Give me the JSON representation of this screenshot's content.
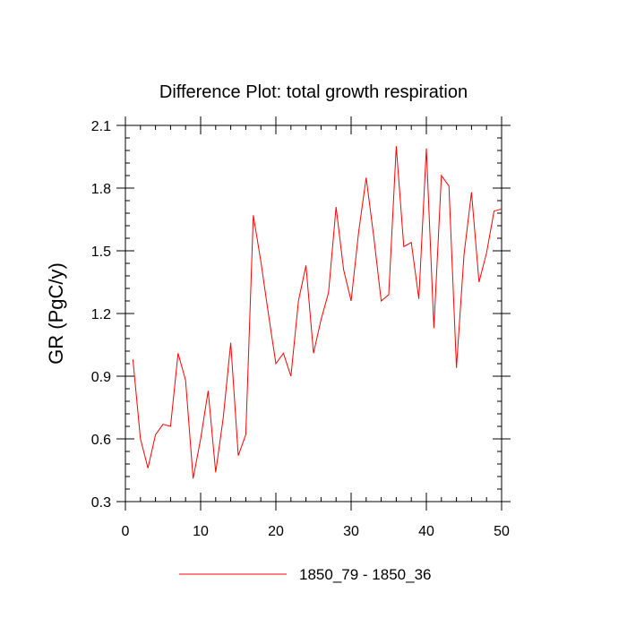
{
  "chart_data": {
    "type": "line",
    "title": "Difference Plot: total growth respiration",
    "xlabel": "",
    "ylabel": "GR  (PgC/y)",
    "xlim": [
      0,
      50
    ],
    "ylim": [
      0.3,
      2.1
    ],
    "x_ticks": [
      0,
      10,
      20,
      30,
      40,
      50
    ],
    "x_tick_labels": [
      "0",
      "10",
      "20",
      "30",
      "40",
      "50"
    ],
    "y_ticks": [
      0.3,
      0.6,
      0.9,
      1.2,
      1.5,
      1.8,
      2.1
    ],
    "y_tick_labels": [
      "0.3",
      "0.6",
      "0.9",
      "1.2",
      "1.5",
      "1.8",
      "2.1"
    ],
    "grid": false,
    "legend_position": "bottom-center",
    "series": [
      {
        "name": "1850_79 - 1850_36",
        "color": "#ff0000",
        "x": [
          1,
          2,
          3,
          4,
          5,
          6,
          7,
          8,
          9,
          10,
          11,
          12,
          13,
          14,
          15,
          16,
          17,
          18,
          19,
          20,
          21,
          22,
          23,
          24,
          25,
          26,
          27,
          28,
          29,
          30,
          31,
          32,
          33,
          34,
          35,
          36,
          37,
          38,
          39,
          40,
          41,
          42,
          43,
          44,
          45,
          46,
          47,
          48,
          49,
          50
        ],
        "values": [
          0.98,
          0.6,
          0.46,
          0.62,
          0.67,
          0.66,
          1.01,
          0.88,
          0.41,
          0.6,
          0.83,
          0.44,
          0.7,
          1.06,
          0.52,
          0.62,
          1.67,
          1.45,
          1.2,
          0.96,
          1.01,
          0.9,
          1.26,
          1.43,
          1.01,
          1.17,
          1.3,
          1.71,
          1.41,
          1.26,
          1.59,
          1.85,
          1.57,
          1.26,
          1.29,
          2.0,
          1.52,
          1.54,
          1.27,
          1.99,
          1.13,
          1.86,
          1.81,
          0.94,
          1.48,
          1.78,
          1.35,
          1.49,
          1.69,
          1.7
        ]
      }
    ]
  }
}
